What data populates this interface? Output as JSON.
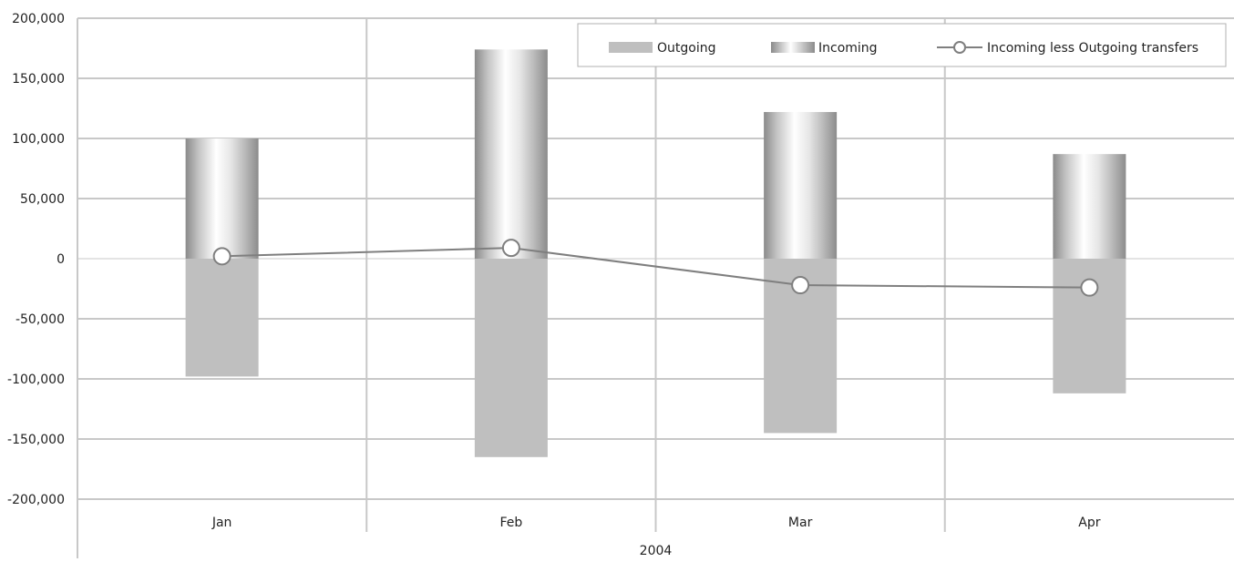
{
  "chart_data": {
    "type": "bar",
    "title": "",
    "xlabel": "",
    "ylabel": "",
    "group_label": "2004",
    "categories": [
      "Jan",
      "Feb",
      "Mar",
      "Apr"
    ],
    "ylim": [
      -200000,
      200000
    ],
    "yticks": [
      200000,
      150000,
      100000,
      50000,
      0,
      -50000,
      -100000,
      -150000,
      -200000
    ],
    "ytick_labels": [
      "200,000",
      "150,000",
      "100,000",
      "50,000",
      "0",
      "-50,000",
      "-100,000",
      "-150,000",
      "-200,000"
    ],
    "grid": true,
    "legend_position": "top-right",
    "series": [
      {
        "name": "Outgoing",
        "type": "bar",
        "color": "#bfbfbf",
        "values": [
          -98000,
          -165000,
          -145000,
          -112000
        ]
      },
      {
        "name": "Incoming",
        "type": "bar",
        "color": "#8c8c8c",
        "values": [
          100000,
          174000,
          122000,
          87000
        ]
      },
      {
        "name": "Incoming less Outgoing transfers",
        "type": "line",
        "color": "#7f7f7f",
        "values": [
          2000,
          9000,
          -22000,
          -24000
        ]
      }
    ]
  }
}
